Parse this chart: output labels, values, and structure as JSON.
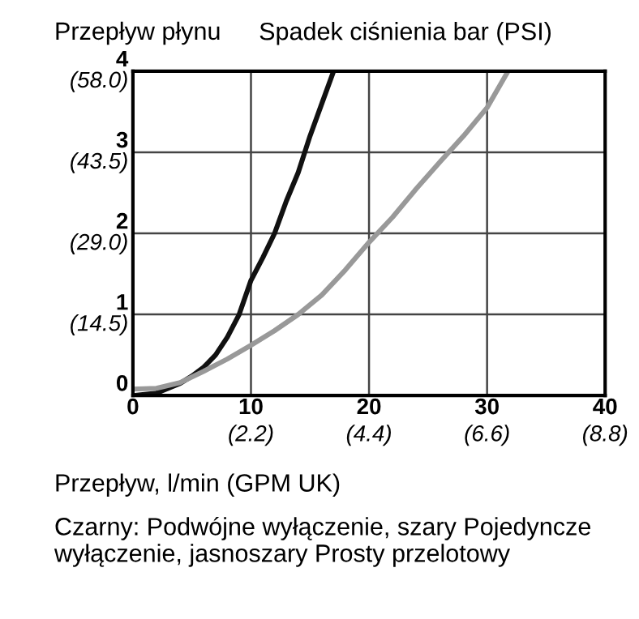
{
  "chart_data": {
    "type": "line",
    "title": "Przepływ płynu",
    "ylabel": "Spadek ciśnienia bar (PSI)",
    "xlabel": "Przepływ, l/min (GPM UK)",
    "annotations": [
      "Czarny: Podwójne wyłączenie, szary Pojedyncze wyłączenie, jasnoszary Prosty przelotowy"
    ],
    "xlim": [
      0,
      40
    ],
    "xticks": [
      0,
      10,
      20,
      30,
      40
    ],
    "ylim": [
      0,
      4
    ],
    "yticks": [
      0,
      1,
      2,
      3,
      4
    ],
    "x2lim": [
      0,
      8.8
    ],
    "x2ticks": [
      {
        "value": 2.2,
        "label": "(2.2)"
      },
      {
        "value": 4.4,
        "label": "(4.4)"
      },
      {
        "value": 6.6,
        "label": "(6.6)"
      },
      {
        "value": 8.8,
        "label": "(8.8)"
      }
    ],
    "y2lim": [
      0,
      58.0
    ],
    "y2ticks": [
      {
        "value": 14.5,
        "label": "(14.5)"
      },
      {
        "value": 29.0,
        "label": "(29.0)"
      },
      {
        "value": 43.5,
        "label": "(43.5)"
      },
      {
        "value": 58.0,
        "label": "(58.0)"
      }
    ],
    "grid": true,
    "marker": "none",
    "line_style": "solid",
    "series": [
      {
        "color": "#111111",
        "x": [
          0,
          2,
          4,
          5,
          6,
          7,
          8,
          9,
          10,
          11,
          12,
          13,
          14,
          15,
          16,
          17
        ],
        "values": [
          0.0,
          0.03,
          0.15,
          0.24,
          0.35,
          0.5,
          0.72,
          1.0,
          1.42,
          1.7,
          2.0,
          2.4,
          2.75,
          3.2,
          3.6,
          4.0
        ]
      },
      {
        "color": "#999999",
        "x": [
          0,
          2,
          4,
          6,
          8,
          10,
          12,
          14,
          16,
          18,
          20,
          22,
          24,
          26,
          28,
          30,
          31.7
        ],
        "values": [
          0.08,
          0.09,
          0.16,
          0.3,
          0.45,
          0.62,
          0.8,
          1.0,
          1.24,
          1.55,
          1.89,
          2.2,
          2.55,
          2.88,
          3.2,
          3.55,
          3.98
        ]
      }
    ]
  }
}
